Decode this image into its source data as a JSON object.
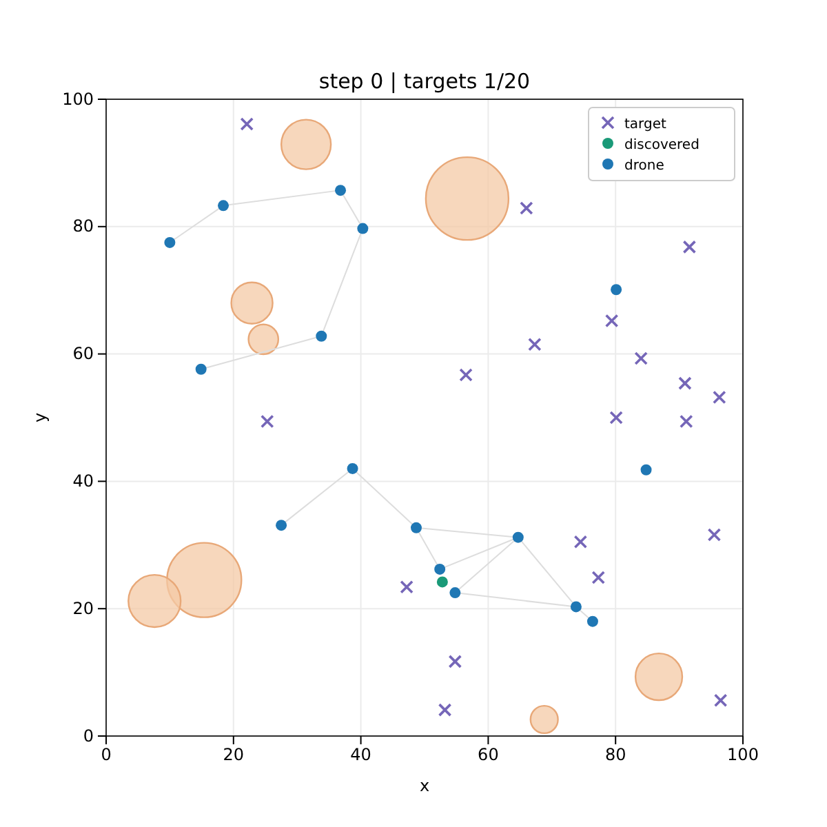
{
  "chart_data": {
    "type": "scatter",
    "title": "step 0 | targets 1/20",
    "xlabel": "x",
    "ylabel": "y",
    "xlim": [
      0,
      100
    ],
    "ylim": [
      0,
      100
    ],
    "xticks": [
      0,
      20,
      40,
      60,
      80,
      100
    ],
    "yticks": [
      0,
      20,
      40,
      60,
      80,
      100
    ],
    "grid": true,
    "legend": "top right",
    "series": [
      {
        "type": "bubble",
        "color": "#f4c9a6",
        "x": [
          31.4,
          56.7,
          22.9,
          24.7,
          15.4,
          7.6,
          86.8,
          68.8
        ],
        "values": [
          92.9,
          84.4,
          68.0,
          62.3,
          24.5,
          21.2,
          9.3,
          2.6
        ],
        "sizes": [
          0.36,
          1,
          0.25,
          0.13,
          0.81,
          0.4,
          0.32,
          0.11
        ]
      },
      {
        "type": "line",
        "color": "#dddddd",
        "marker": "none",
        "x": [
          10.0,
          18.4,
          36.8,
          40.3,
          33.8,
          14.9,
          null,
          27.5,
          38.7,
          48.7,
          64.7,
          52.4,
          48.7,
          null,
          64.7,
          54.8,
          73.8,
          76.4,
          null,
          64.7,
          73.8
        ],
        "values": [
          77.5,
          83.3,
          85.7,
          79.7,
          62.8,
          57.6,
          null,
          33.1,
          42.0,
          32.7,
          31.2,
          26.2,
          32.7,
          null,
          31.2,
          22.5,
          20.3,
          18.0,
          null,
          31.2,
          20.3
        ]
      },
      {
        "name": "target",
        "marker": "cross",
        "color": "#7566b8",
        "x": [
          22.1,
          66.0,
          91.6,
          79.4,
          67.3,
          56.5,
          84.0,
          90.9,
          96.3,
          80.1,
          91.1,
          25.3,
          74.5,
          95.5,
          77.3,
          47.2,
          54.8,
          53.2,
          96.5
        ],
        "values": [
          96.1,
          82.9,
          76.8,
          65.2,
          61.5,
          56.7,
          59.3,
          55.4,
          53.2,
          50.0,
          49.4,
          49.4,
          30.5,
          31.6,
          24.9,
          23.4,
          11.7,
          4.1,
          5.6
        ]
      },
      {
        "name": "discovered",
        "marker": "circle",
        "color": "#1a9a78",
        "x": [
          52.8
        ],
        "values": [
          24.2
        ]
      },
      {
        "name": "drone",
        "marker": "circle",
        "color": "#1f77b4",
        "x": [
          18.4,
          36.8,
          10.0,
          40.3,
          80.1,
          33.8,
          14.9,
          84.8,
          38.7,
          27.5,
          48.7,
          64.7,
          52.4,
          54.8,
          73.8,
          76.4
        ],
        "values": [
          83.3,
          85.7,
          77.5,
          79.7,
          70.1,
          62.8,
          57.6,
          41.8,
          42.0,
          33.1,
          32.7,
          31.2,
          26.2,
          22.5,
          20.3,
          18.0
        ]
      }
    ]
  }
}
